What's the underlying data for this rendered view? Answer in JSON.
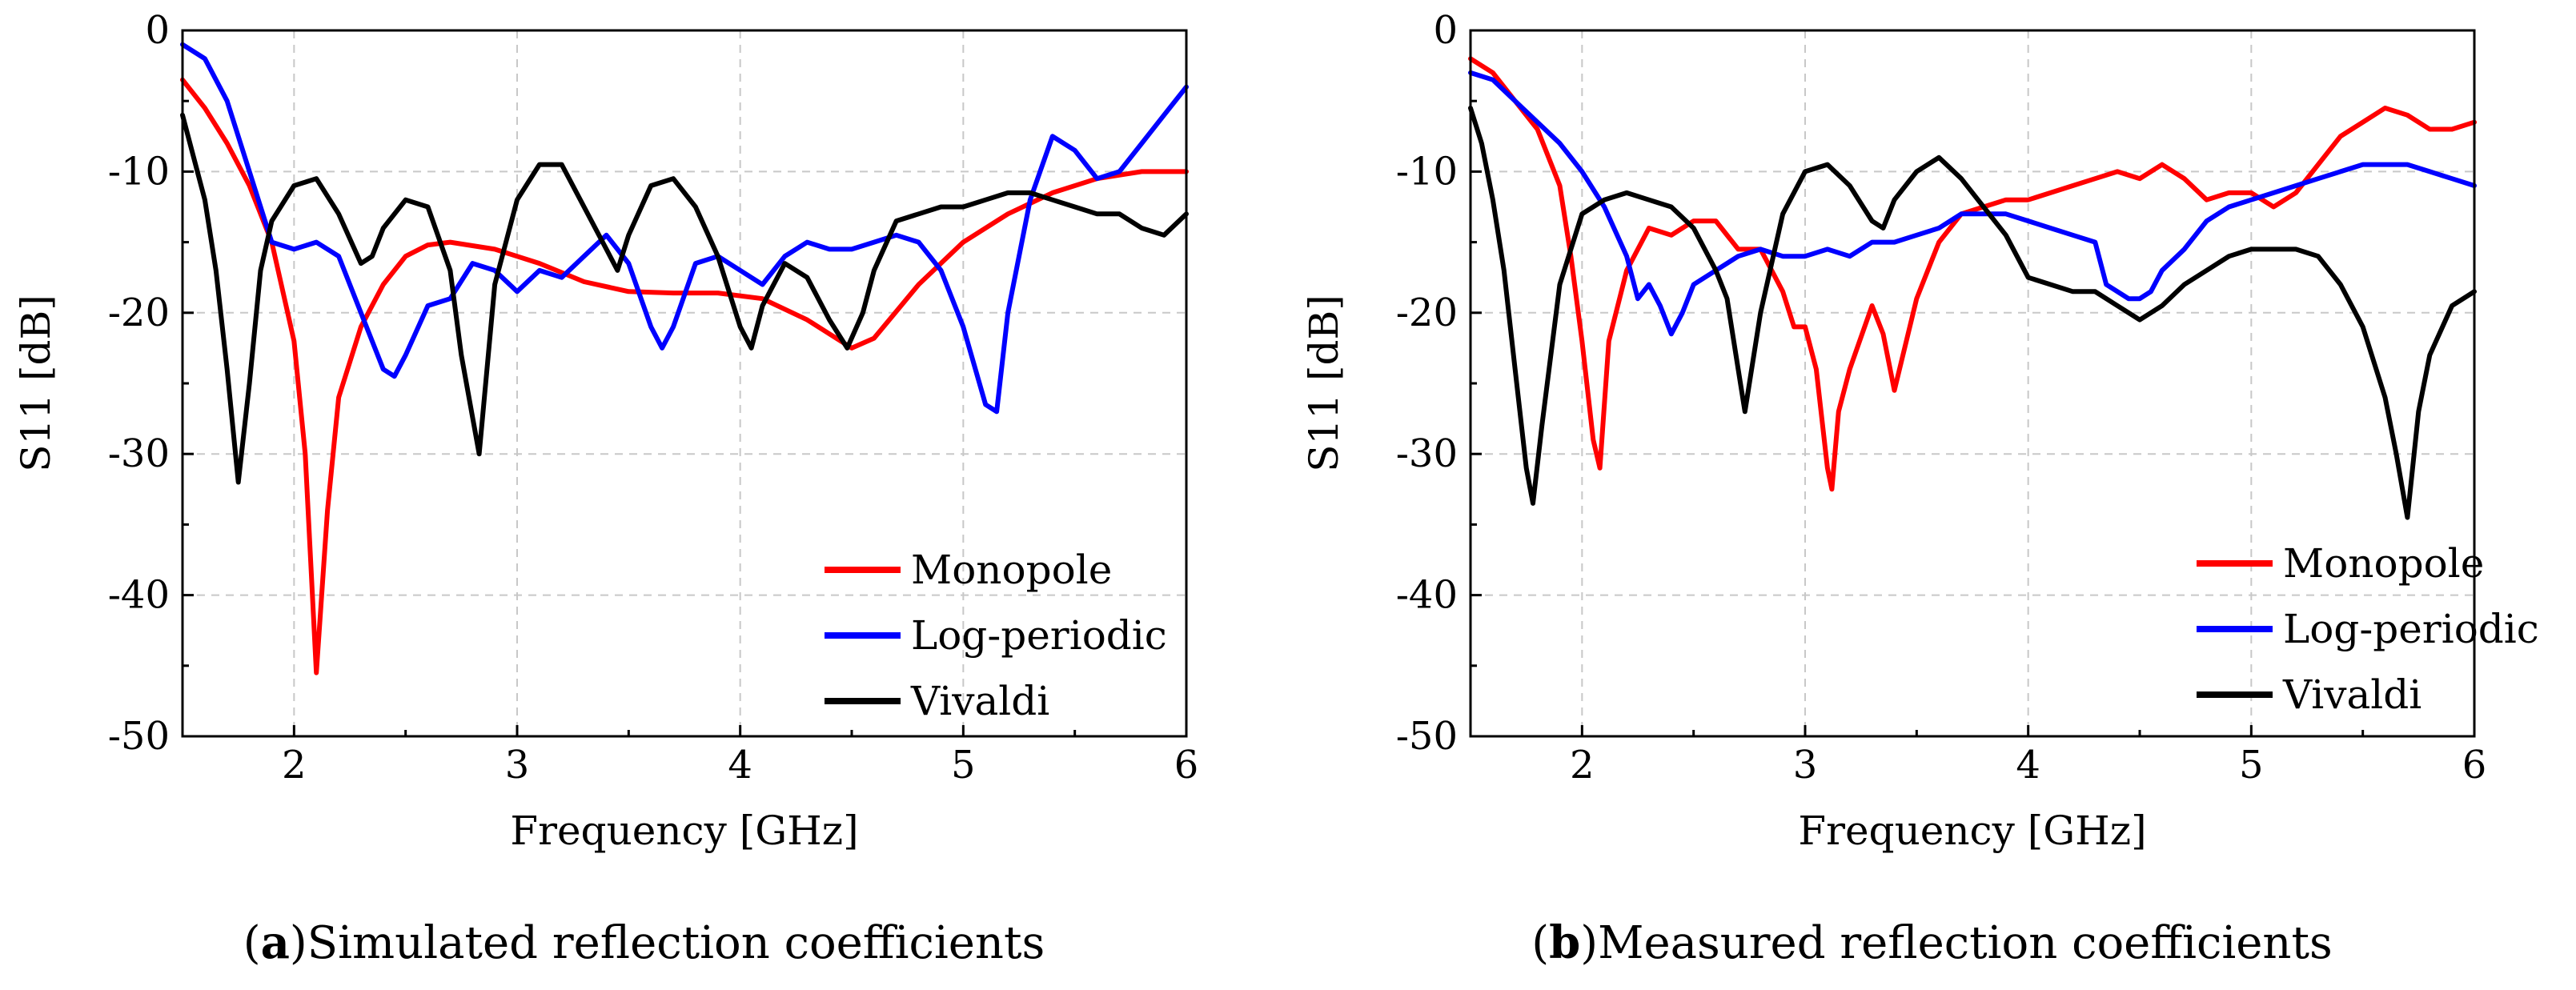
{
  "chart_data": [
    {
      "type": "line",
      "panel_label": "a",
      "caption": "Simulated reflection coefficients",
      "xlabel": "Frequency [GHz]",
      "ylabel": "S11 [dB]",
      "xlim": [
        1.5,
        6
      ],
      "ylim": [
        -50,
        0
      ],
      "xticks": [
        2,
        3,
        4,
        5,
        6
      ],
      "yticks": [
        0,
        -10,
        -20,
        -30,
        -40,
        -50
      ],
      "xtick_labels": [
        "2",
        "3",
        "4",
        "5",
        "6"
      ],
      "ytick_labels": [
        "0",
        "-10",
        "-20",
        "-30",
        "-40",
        "-50"
      ],
      "legend": {
        "placement": "bottom-right",
        "entries": [
          "Monopole",
          "Log-periodic",
          "Vivaldi"
        ]
      },
      "series": [
        {
          "name": "Monopole",
          "color": "#ff0000",
          "x": [
            1.5,
            1.6,
            1.7,
            1.8,
            1.9,
            2.0,
            2.05,
            2.1,
            2.15,
            2.2,
            2.3,
            2.4,
            2.5,
            2.6,
            2.7,
            2.9,
            3.1,
            3.3,
            3.5,
            3.7,
            3.9,
            4.1,
            4.3,
            4.5,
            4.6,
            4.8,
            5.0,
            5.2,
            5.4,
            5.6,
            5.8,
            6.0
          ],
          "y": [
            -3.5,
            -5.5,
            -8,
            -11,
            -15,
            -22,
            -30,
            -45.5,
            -34,
            -26,
            -21,
            -18,
            -16,
            -15.2,
            -15,
            -15.5,
            -16.5,
            -17.8,
            -18.5,
            -18.6,
            -18.6,
            -19,
            -20.5,
            -22.5,
            -21.8,
            -18,
            -15,
            -13,
            -11.5,
            -10.5,
            -10,
            -10
          ]
        },
        {
          "name": "Log-periodic",
          "color": "#0000ff",
          "x": [
            1.5,
            1.6,
            1.7,
            1.8,
            1.9,
            2.0,
            2.1,
            2.2,
            2.3,
            2.4,
            2.45,
            2.5,
            2.6,
            2.7,
            2.8,
            2.9,
            3.0,
            3.1,
            3.2,
            3.3,
            3.4,
            3.5,
            3.6,
            3.65,
            3.7,
            3.8,
            3.9,
            4.0,
            4.1,
            4.2,
            4.3,
            4.4,
            4.5,
            4.6,
            4.7,
            4.8,
            4.9,
            5.0,
            5.1,
            5.15,
            5.2,
            5.3,
            5.4,
            5.5,
            5.6,
            5.7,
            5.8,
            5.9,
            6.0
          ],
          "y": [
            -1,
            -2,
            -5,
            -10,
            -15,
            -15.5,
            -15,
            -16,
            -20,
            -24,
            -24.5,
            -23,
            -19.5,
            -19,
            -16.5,
            -17,
            -18.5,
            -17,
            -17.5,
            -16,
            -14.5,
            -16.5,
            -21,
            -22.5,
            -21,
            -16.5,
            -16,
            -17,
            -18,
            -16,
            -15,
            -15.5,
            -15.5,
            -15,
            -14.5,
            -15,
            -17,
            -21,
            -26.5,
            -27,
            -20,
            -12,
            -7.5,
            -8.5,
            -10.5,
            -10,
            -8,
            -6,
            -4
          ]
        },
        {
          "name": "Vivaldi",
          "color": "#000000",
          "x": [
            1.5,
            1.6,
            1.65,
            1.7,
            1.75,
            1.8,
            1.85,
            1.9,
            2.0,
            2.1,
            2.2,
            2.3,
            2.35,
            2.4,
            2.5,
            2.6,
            2.7,
            2.75,
            2.83,
            2.9,
            3.0,
            3.1,
            3.2,
            3.3,
            3.4,
            3.45,
            3.5,
            3.6,
            3.7,
            3.8,
            3.9,
            4.0,
            4.05,
            4.1,
            4.2,
            4.3,
            4.4,
            4.48,
            4.55,
            4.6,
            4.7,
            4.8,
            4.9,
            5.0,
            5.1,
            5.2,
            5.3,
            5.4,
            5.5,
            5.6,
            5.7,
            5.8,
            5.9,
            6.0
          ],
          "y": [
            -6,
            -12,
            -17,
            -24,
            -32,
            -25,
            -17,
            -13.5,
            -11,
            -10.5,
            -13,
            -16.5,
            -16,
            -14,
            -12,
            -12.5,
            -17,
            -23,
            -30,
            -18,
            -12,
            -9.5,
            -9.5,
            -12.5,
            -15.5,
            -17,
            -14.5,
            -11,
            -10.5,
            -12.5,
            -16,
            -21,
            -22.5,
            -19.5,
            -16.5,
            -17.5,
            -20.5,
            -22.5,
            -20,
            -17,
            -13.5,
            -13,
            -12.5,
            -12.5,
            -12,
            -11.5,
            -11.5,
            -12,
            -12.5,
            -13,
            -13,
            -14,
            -14.5,
            -13
          ]
        }
      ]
    },
    {
      "type": "line",
      "panel_label": "b",
      "caption": "Measured reflection coefficients",
      "xlabel": "Frequency [GHz]",
      "ylabel": "S11 [dB]",
      "xlim": [
        1.5,
        6
      ],
      "ylim": [
        -50,
        0
      ],
      "xticks": [
        2,
        3,
        4,
        5,
        6
      ],
      "yticks": [
        0,
        -10,
        -20,
        -30,
        -40,
        -50
      ],
      "xtick_labels": [
        "2",
        "3",
        "4",
        "5",
        "6"
      ],
      "ytick_labels": [
        "0",
        "-10",
        "-20",
        "-30",
        "-40",
        "-50"
      ],
      "legend": {
        "placement": "bottom-right",
        "entries": [
          "Monopole",
          "Log-periodic",
          "Vivaldi"
        ]
      },
      "series": [
        {
          "name": "Monopole",
          "color": "#ff0000",
          "x": [
            1.5,
            1.6,
            1.7,
            1.8,
            1.9,
            1.95,
            2.0,
            2.05,
            2.08,
            2.12,
            2.2,
            2.3,
            2.4,
            2.5,
            2.6,
            2.7,
            2.8,
            2.9,
            2.95,
            3.0,
            3.05,
            3.1,
            3.12,
            3.15,
            3.2,
            3.3,
            3.35,
            3.4,
            3.5,
            3.6,
            3.7,
            3.8,
            3.9,
            4.0,
            4.1,
            4.2,
            4.3,
            4.4,
            4.5,
            4.6,
            4.7,
            4.8,
            4.9,
            5.0,
            5.1,
            5.2,
            5.3,
            5.4,
            5.5,
            5.6,
            5.7,
            5.8,
            5.9,
            6.0
          ],
          "y": [
            -2,
            -3,
            -5,
            -7,
            -11,
            -16,
            -22,
            -29,
            -31,
            -22,
            -17,
            -14,
            -14.5,
            -13.5,
            -13.5,
            -15.5,
            -15.5,
            -18.5,
            -21,
            -21,
            -24,
            -31,
            -32.5,
            -27,
            -24,
            -19.5,
            -21.5,
            -25.5,
            -19,
            -15,
            -13,
            -12.5,
            -12,
            -12,
            -11.5,
            -11,
            -10.5,
            -10,
            -10.5,
            -9.5,
            -10.5,
            -12,
            -11.5,
            -11.5,
            -12.5,
            -11.5,
            -9.5,
            -7.5,
            -6.5,
            -5.5,
            -6,
            -7,
            -7,
            -6.5
          ]
        },
        {
          "name": "Log-periodic",
          "color": "#0000ff",
          "x": [
            1.5,
            1.6,
            1.7,
            1.8,
            1.9,
            2.0,
            2.1,
            2.2,
            2.25,
            2.3,
            2.35,
            2.4,
            2.45,
            2.5,
            2.6,
            2.7,
            2.8,
            2.9,
            3.0,
            3.1,
            3.2,
            3.3,
            3.4,
            3.5,
            3.6,
            3.7,
            3.8,
            3.9,
            4.0,
            4.1,
            4.2,
            4.3,
            4.35,
            4.4,
            4.45,
            4.5,
            4.55,
            4.6,
            4.7,
            4.8,
            4.9,
            5.0,
            5.1,
            5.2,
            5.3,
            5.4,
            5.5,
            5.6,
            5.7,
            5.8,
            5.9,
            6.0
          ],
          "y": [
            -3,
            -3.5,
            -5,
            -6.5,
            -8,
            -10,
            -12.5,
            -16,
            -19,
            -18,
            -19.5,
            -21.5,
            -20,
            -18,
            -17,
            -16,
            -15.5,
            -16,
            -16,
            -15.5,
            -16,
            -15,
            -15,
            -14.5,
            -14,
            -13,
            -13,
            -13,
            -13.5,
            -14,
            -14.5,
            -15,
            -18,
            -18.5,
            -19,
            -19,
            -18.5,
            -17,
            -15.5,
            -13.5,
            -12.5,
            -12,
            -11.5,
            -11,
            -10.5,
            -10,
            -9.5,
            -9.5,
            -9.5,
            -10,
            -10.5,
            -11
          ]
        },
        {
          "name": "Vivaldi",
          "color": "#000000",
          "x": [
            1.5,
            1.55,
            1.6,
            1.65,
            1.7,
            1.75,
            1.78,
            1.82,
            1.9,
            2.0,
            2.1,
            2.2,
            2.3,
            2.4,
            2.5,
            2.6,
            2.65,
            2.7,
            2.73,
            2.8,
            2.9,
            3.0,
            3.1,
            3.2,
            3.3,
            3.35,
            3.4,
            3.5,
            3.6,
            3.7,
            3.8,
            3.9,
            4.0,
            4.1,
            4.2,
            4.3,
            4.4,
            4.5,
            4.6,
            4.7,
            4.8,
            4.9,
            5.0,
            5.1,
            5.2,
            5.3,
            5.4,
            5.5,
            5.6,
            5.65,
            5.7,
            5.75,
            5.8,
            5.9,
            6.0
          ],
          "y": [
            -5.5,
            -8,
            -12,
            -17,
            -24,
            -31,
            -33.5,
            -28,
            -18,
            -13,
            -12,
            -11.5,
            -12,
            -12.5,
            -14,
            -17,
            -19,
            -24,
            -27,
            -20,
            -13,
            -10,
            -9.5,
            -11,
            -13.5,
            -14,
            -12,
            -10,
            -9,
            -10.5,
            -12.5,
            -14.5,
            -17.5,
            -18,
            -18.5,
            -18.5,
            -19.5,
            -20.5,
            -19.5,
            -18,
            -17,
            -16,
            -15.5,
            -15.5,
            -15.5,
            -16,
            -18,
            -21,
            -26,
            -30,
            -34.5,
            -27,
            -23,
            -19.5,
            -18.5
          ]
        }
      ]
    }
  ]
}
